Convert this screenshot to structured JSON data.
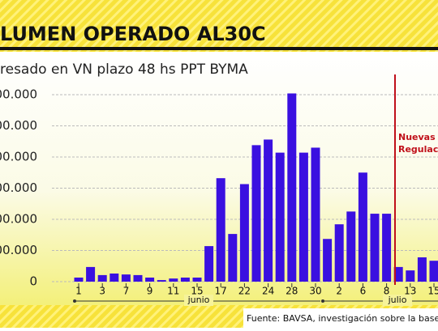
{
  "chart_data": {
    "type": "bar",
    "title": "LUMEN OPERADO AL30C",
    "subtitle": "resado en VN plazo 48 hs PPT BYMA",
    "categories": [
      "1",
      null,
      "3",
      null,
      "7",
      null,
      "9",
      null,
      "11",
      null,
      "15",
      null,
      "17",
      null,
      "22",
      null,
      "24",
      null,
      "28",
      null,
      "30",
      null,
      "2",
      null,
      "6",
      null,
      "8",
      null,
      "13",
      null,
      "15"
    ],
    "values": [
      13,
      47,
      21,
      26,
      23,
      21,
      13,
      5,
      10,
      13,
      13,
      114,
      332,
      153,
      313,
      438,
      456,
      414,
      604,
      414,
      430,
      137,
      184,
      225,
      350,
      218,
      218,
      47,
      36,
      78,
      67
    ],
    "color": "#3a10e0",
    "ylim": [
      0,
      600
    ],
    "yticks": [
      {
        "value": 0,
        "label": "0"
      },
      {
        "value": 100,
        "label": "00.000"
      },
      {
        "value": 200,
        "label": "00.000"
      },
      {
        "value": 300,
        "label": "00.000"
      },
      {
        "value": 400,
        "label": "00.000"
      },
      {
        "value": 500,
        "label": "00.000"
      },
      {
        "value": 600,
        "label": "00.000"
      }
    ],
    "grid": true,
    "months": [
      "junio",
      "julio"
    ],
    "annotation": [
      "Nuevas",
      "Regulaci"
    ],
    "source": "Fuente: BAVSA, investigación sobre la base"
  }
}
